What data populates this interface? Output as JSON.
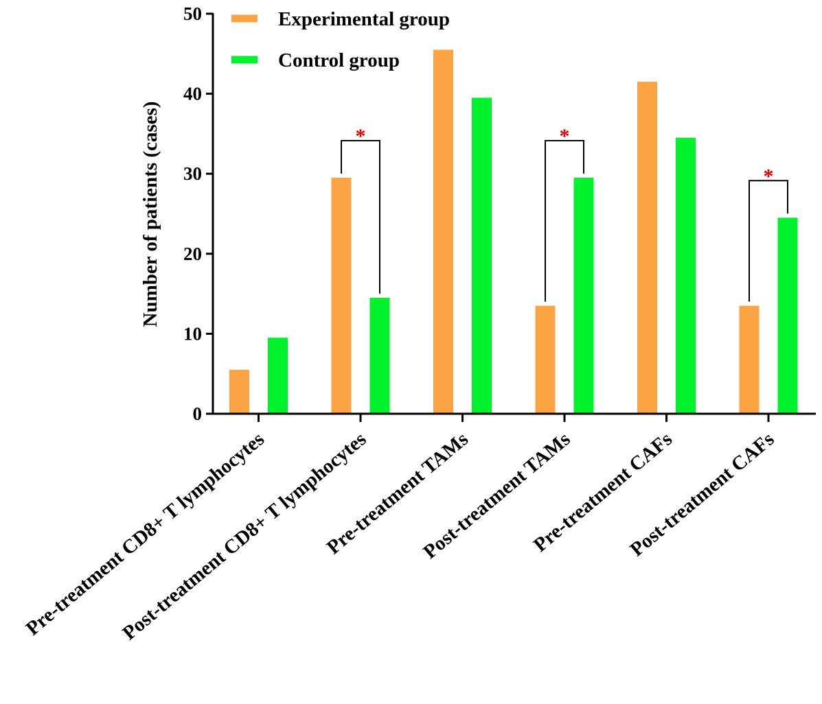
{
  "chart_data": {
    "type": "bar",
    "title": "",
    "xlabel": "",
    "ylabel": "Number of patients (cases)",
    "ylim": [
      0,
      50
    ],
    "yticks": [
      0,
      10,
      20,
      30,
      40,
      50
    ],
    "grid": false,
    "legend_position": "top",
    "categories": [
      "Pre-treatment CD8+ T lymphocytes",
      "Post-treatment CD8+ T lymphocytes",
      "Pre-treatment TAMs",
      "Post-treatment TAMs",
      "Pre-treatment CAFs",
      "Post-treatment CAFs"
    ],
    "series": [
      {
        "name": "Experimental group",
        "color": "#fca344",
        "values": [
          5.5,
          29.5,
          45.5,
          13.5,
          41.5,
          13.5
        ]
      },
      {
        "name": "Control group",
        "color": "#00f22d",
        "values": [
          9.5,
          14.5,
          39.5,
          29.5,
          34.5,
          24.5
        ]
      }
    ],
    "significance": [
      {
        "category_index": 1,
        "label": "*"
      },
      {
        "category_index": 3,
        "label": "*"
      },
      {
        "category_index": 5,
        "label": "*"
      }
    ],
    "significance_color": "#e00000"
  }
}
